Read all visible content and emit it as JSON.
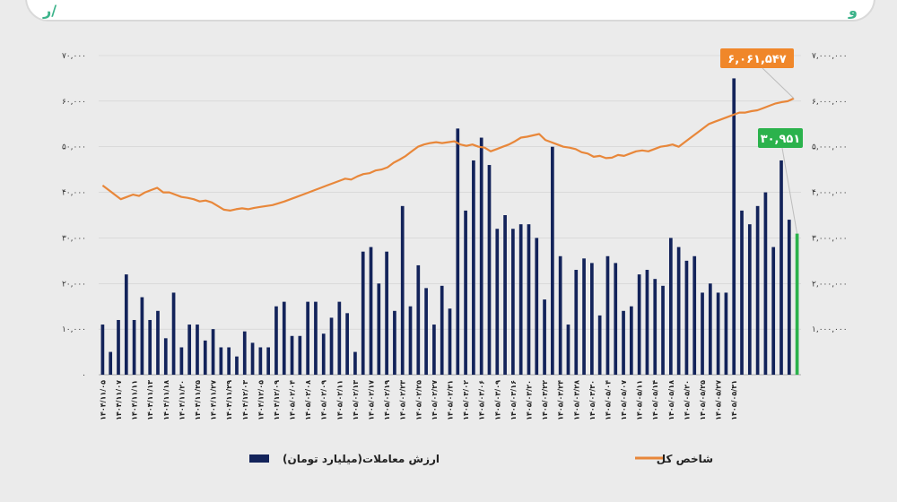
{
  "chart_data": {
    "type": "bar+line",
    "categories": [
      "۱۴۰۴/۱۱/۰۵",
      "",
      "۱۴۰۴/۱۱/۰۷",
      "",
      "۱۴۰۴/۱۱/۱۱",
      "",
      "۱۴۰۴/۱۱/۱۳",
      "",
      "۱۴۰۴/۱۱/۱۸",
      "",
      "۱۴۰۴/۱۱/۲۰",
      "",
      "۱۴۰۴/۱۱/۲۵",
      "",
      "۱۴۰۴/۱۱/۲۷",
      "",
      "۱۴۰۴/۱۱/۲۹",
      "",
      "۱۴۰۴/۱۲/۰۳",
      "",
      "۱۴۰۴/۱۲/۰۵",
      "",
      "۱۴۰۴/۱۲/۰۹",
      "",
      "۱۴۰۵/۰۲/۰۴",
      "",
      "۱۴۰۵/۰۲/۰۸",
      "",
      "۱۴۰۵/۰۲/۰۹",
      "",
      "۱۴۰۵/۰۲/۱۱",
      "",
      "۱۴۰۵/۰۲/۱۳",
      "",
      "۱۴۰۵/۰۲/۱۷",
      "",
      "۱۴۰۵/۰۲/۱۹",
      "",
      "۱۴۰۵/۰۲/۲۳",
      "",
      "۱۴۰۵/۰۲/۲۵",
      "",
      "۱۴۰۵/۰۲/۲۷",
      "",
      "۱۴۰۵/۰۲/۳۱",
      "",
      "۱۴۰۵/۰۳/۰۲",
      "",
      "۱۴۰۵/۰۳/۰۶",
      "",
      "۱۴۰۵/۰۳/۰۹",
      "",
      "۱۴۰۵/۰۳/۱۶",
      "",
      "۱۴۰۵/۰۳/۲۰",
      "",
      "۱۴۰۵/۰۳/۲۲",
      "",
      "۱۴۰۵/۰۳/۲۴",
      "",
      "۱۴۰۵/۰۳/۲۸",
      "",
      "۱۴۰۵/۰۳/۳۰",
      "",
      "۱۴۰۵/۰۵/۰۴",
      "",
      "۱۴۰۵/۰۵/۰۷",
      "",
      "۱۴۰۵/۰۵/۱۱",
      "",
      "۱۴۰۵/۰۵/۱۴",
      "",
      "۱۴۰۵/۰۵/۱۸",
      "",
      "۱۴۰۵/۰۵/۲۰",
      "",
      "۱۴۰۵/۰۵/۲۵",
      "",
      "۱۴۰۵/۰۵/۲۷",
      "",
      "۱۴۰۵/۰۵/۳۱"
    ],
    "bars": [
      11000,
      5000,
      12000,
      22000,
      12000,
      17000,
      12000,
      14000,
      8000,
      18000,
      6000,
      11000,
      11000,
      7500,
      10000,
      6000,
      6000,
      4000,
      9500,
      7000,
      6000,
      6000,
      15000,
      16000,
      8500,
      8500,
      16000,
      16000,
      9000,
      12500,
      16000,
      13500,
      5000,
      27000,
      28000,
      20000,
      27000,
      14000,
      37000,
      15000,
      24000,
      19000,
      11000,
      19500,
      14500,
      54000,
      36000,
      47000,
      52000,
      46000,
      32000,
      35000,
      32000,
      33000,
      33000,
      30000,
      16500,
      50000,
      26000,
      11000,
      23000,
      25500,
      24500,
      13000,
      26000,
      24500,
      14000,
      15000,
      22000,
      23000,
      21000,
      19500,
      30000,
      28000,
      25000,
      26000,
      18000,
      20000,
      18000,
      18000,
      65000,
      36000,
      33000,
      37000,
      40000,
      28000,
      47000,
      34000,
      30951
    ],
    "line": [
      4150000,
      4050000,
      3950000,
      3850000,
      3900000,
      3950000,
      3920000,
      4000000,
      4050000,
      4100000,
      4000000,
      4000000,
      3950000,
      3900000,
      3880000,
      3850000,
      3800000,
      3820000,
      3780000,
      3700000,
      3620000,
      3600000,
      3630000,
      3650000,
      3630000,
      3660000,
      3680000,
      3700000,
      3720000,
      3760000,
      3800000,
      3850000,
      3900000,
      3950000,
      4000000,
      4050000,
      4100000,
      4150000,
      4200000,
      4250000,
      4300000,
      4280000,
      4350000,
      4400000,
      4420000,
      4480000,
      4500000,
      4550000,
      4650000,
      4720000,
      4800000,
      4900000,
      5000000,
      5050000,
      5080000,
      5100000,
      5080000,
      5100000,
      5120000,
      5050000,
      5020000,
      5050000,
      5000000,
      4980000,
      4900000,
      4950000,
      5000000,
      5050000,
      5120000,
      5200000,
      5220000,
      5250000,
      5280000,
      5150000,
      5100000,
      5050000,
      5000000,
      4980000,
      4950000,
      4880000,
      4850000,
      4780000,
      4800000,
      4750000,
      4760000,
      4820000,
      4800000,
      4850000,
      4900000,
      4920000,
      4900000,
      4950000,
      5000000,
      5020000,
      5050000,
      5000000,
      5100000,
      5200000,
      5300000,
      5400000,
      5500000,
      5550000,
      5600000,
      5650000,
      5700000,
      5750000,
      5750000,
      5780000,
      5800000,
      5850000,
      5900000,
      5950000,
      5980000,
      6000000,
      6061547
    ],
    "y_left_ticks": [
      "۰",
      "۱۰,۰۰۰",
      "۲۰,۰۰۰",
      "۳۰,۰۰۰",
      "۴۰,۰۰۰",
      "۵۰,۰۰۰",
      "۶۰,۰۰۰",
      "۷۰,۰۰۰"
    ],
    "y_right_ticks": [
      "",
      "۱,۰۰۰,۰۰۰",
      "۲,۰۰۰,۰۰۰",
      "۳,۰۰۰,۰۰۰",
      "۴,۰۰۰,۰۰۰",
      "۵,۰۰۰,۰۰۰",
      "۶,۰۰۰,۰۰۰",
      "۷,۰۰۰,۰۰۰"
    ],
    "ylim_left": [
      0,
      70000
    ],
    "ylim_right": [
      0,
      7000000
    ],
    "callout_line": "۶,۰۶۱,۵۴۷",
    "callout_bar": "۳۰,۹۵۱",
    "legend": {
      "bars": "ارزش معاملات(میلیارد تومان)",
      "line": "شاخص کل"
    },
    "colors": {
      "bar": "#13235a",
      "bar_last": "#2bb24c",
      "line": "#e8873a",
      "callout_line": "#f0872a",
      "callout_bar": "#2bb24c",
      "grid": "#cfcfcf"
    }
  }
}
